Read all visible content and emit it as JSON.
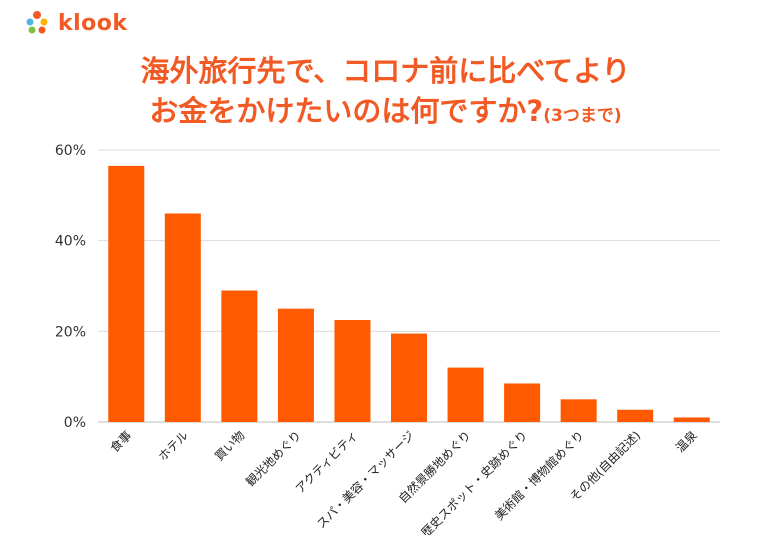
{
  "brand": {
    "name": "klook",
    "color": "#f15a24"
  },
  "title": {
    "line1": "海外旅行先で、コロナ前に比べてより",
    "line2_main": "お金をかけたいのは何ですか?",
    "line2_note": "(3つまで)"
  },
  "chart_data": {
    "type": "bar",
    "categories": [
      "食事",
      "ホテル",
      "買い物",
      "観光地めぐり",
      "アクティビティ",
      "スパ・美容・マッサージ",
      "自然景勝地めぐり",
      "歴史スポット・史跡めぐり",
      "美術館・博物館めぐり",
      "その他(自由記述)",
      "温泉"
    ],
    "values": [
      56.5,
      46,
      29,
      25,
      22.5,
      19.5,
      12,
      8.5,
      5,
      2.7,
      1
    ],
    "ylim": [
      0,
      60
    ],
    "yticks": [
      0,
      20,
      40,
      60
    ],
    "ytick_labels": [
      "0%",
      "20%",
      "40%",
      "60%"
    ],
    "bar_color": "#ff5a00",
    "grid": true
  }
}
